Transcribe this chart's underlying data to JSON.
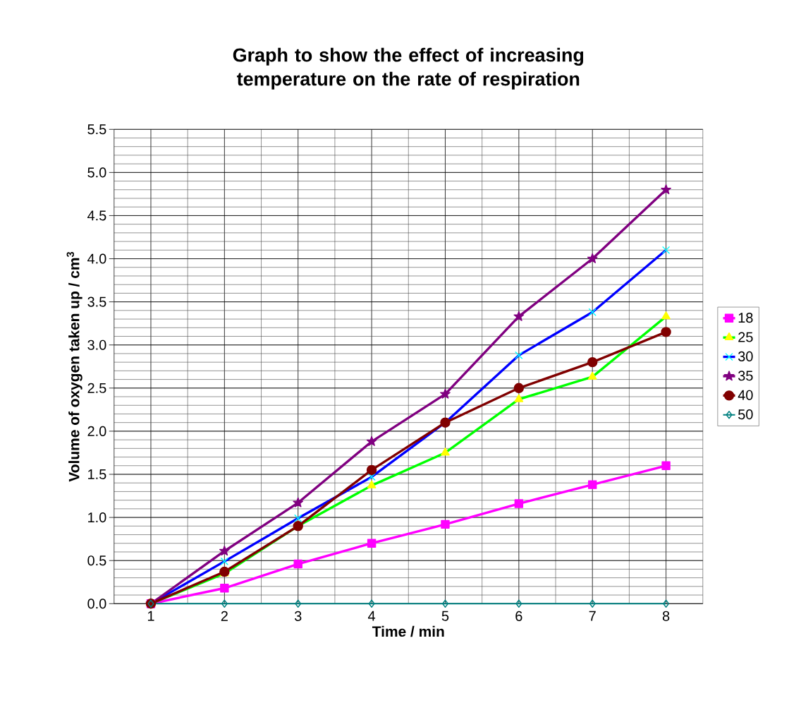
{
  "chart_data": {
    "type": "line",
    "title": "Graph to show the effect of increasing temperature on the rate of respiration",
    "xlabel": "Time / min",
    "ylabel": "Volume of oxygen taken up / cm$^{3}$",
    "categories": [
      "1",
      "2",
      "3",
      "4",
      "5",
      "6",
      "7",
      "8"
    ],
    "ylim": [
      0,
      5.5
    ],
    "yticks": [
      {
        "value": 0,
        "label": "0.0"
      },
      {
        "value": 0.5,
        "label": "0.5"
      },
      {
        "value": 1,
        "label": "1.0"
      },
      {
        "value": 1.5,
        "label": "1.5"
      },
      {
        "value": 2,
        "label": "2.0"
      },
      {
        "value": 2.5,
        "label": "2.5"
      },
      {
        "value": 3,
        "label": "3.0"
      },
      {
        "value": 3.5,
        "label": "3.5"
      },
      {
        "value": 4,
        "label": "4.0"
      },
      {
        "value": 4.5,
        "label": "4.5"
      },
      {
        "value": 5,
        "label": "5.0"
      },
      {
        "value": 5.5,
        "label": "5.5"
      }
    ],
    "grid": true,
    "legend": "right",
    "series": [
      {
        "name": "18",
        "color": "#ff00ff",
        "marker": "square",
        "values": [
          0,
          0.18,
          0.46,
          0.7,
          0.92,
          1.16,
          1.38,
          1.6
        ]
      },
      {
        "name": "25",
        "color": "#00ff00",
        "colors": [
          "#ffff00",
          "#ffff00",
          "#ffff00",
          "#ffff00",
          "#ffff00",
          "#ffff00",
          "#ffff00",
          "#ffff00"
        ],
        "marker": "triangle",
        "values": [
          0,
          0.35,
          0.9,
          1.37,
          1.75,
          2.37,
          2.63,
          3.33
        ]
      },
      {
        "name": "30",
        "color": "#0000ff",
        "colors": [
          "#00ffff",
          "#00ffff",
          "#00ffff",
          "#00ffff",
          "#00ffff",
          "#00ffff",
          "#00ffff",
          "#00ffff"
        ],
        "marker": "cross",
        "values": [
          0,
          0.49,
          0.99,
          1.47,
          2.1,
          2.88,
          3.38,
          4.1
        ]
      },
      {
        "name": "35",
        "color": "#800080",
        "marker": "star",
        "values": [
          0,
          0.61,
          1.17,
          1.88,
          2.43,
          3.33,
          4.0,
          4.8
        ]
      },
      {
        "name": "40",
        "color": "#800000",
        "marker": "circle",
        "values": [
          0,
          0.37,
          0.9,
          1.55,
          2.1,
          2.5,
          2.8,
          3.15
        ]
      },
      {
        "name": "50",
        "color": "#008080",
        "marker": "diamond",
        "values": [
          0,
          0,
          0,
          0,
          0,
          0,
          0,
          0
        ]
      }
    ]
  }
}
